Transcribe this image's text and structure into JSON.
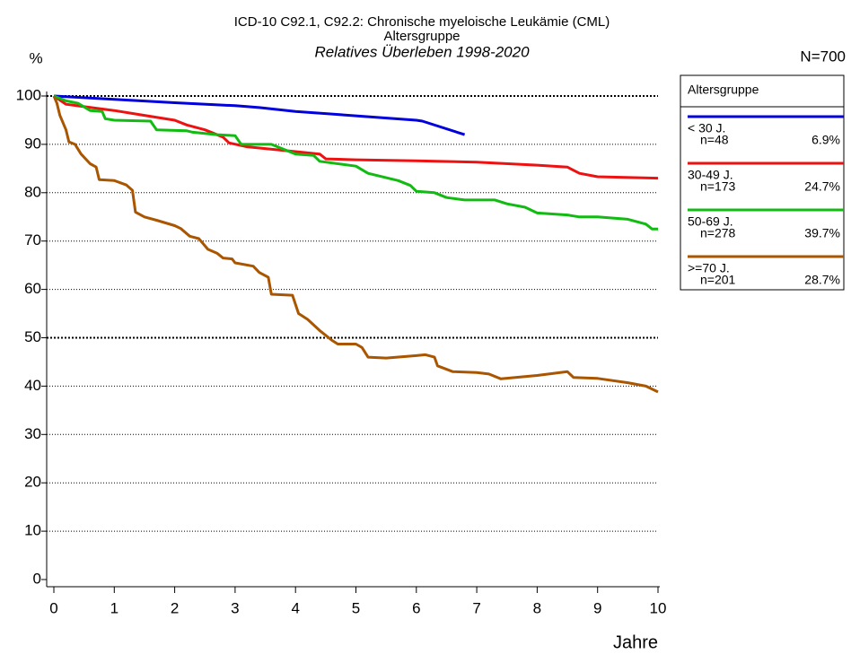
{
  "chart_data": {
    "type": "line",
    "title": "ICD-10 C92.1, C92.2: Chronische myeloische Leukämie (CML)",
    "subtitle": "Altersgruppe",
    "subtitle2": "Relatives Überleben 1998-2020",
    "y_label": "%",
    "x_label": "Jahre",
    "total_label": "N=700",
    "legend_title": "Altersgruppe",
    "xlim": [
      0,
      10
    ],
    "xticks": [
      0,
      1,
      2,
      3,
      4,
      5,
      6,
      7,
      8,
      9,
      10
    ],
    "ylim": [
      0,
      100
    ],
    "yticks": [
      0,
      10,
      20,
      30,
      40,
      50,
      60,
      70,
      80,
      90,
      100
    ],
    "grid": true,
    "bold_gridlines": [
      50,
      100
    ],
    "series": [
      {
        "name": "< 30 J.",
        "n_label": "n=48",
        "share_label": "6.9%",
        "color": "#0000dd",
        "x": [
          0,
          1,
          2,
          3,
          3.4,
          4,
          5,
          6,
          6.1,
          6.8
        ],
        "values": [
          100,
          99.3,
          98.6,
          98,
          97.6,
          96.8,
          95.9,
          95,
          94.8,
          92
        ]
      },
      {
        "name": "30-49 J.",
        "n_label": "n=173",
        "share_label": "24.7%",
        "color": "#ee1111",
        "x": [
          0,
          0.2,
          0.5,
          1,
          1.5,
          2,
          2.2,
          2.5,
          2.8,
          2.9,
          3.2,
          4,
          4.4,
          4.5,
          5,
          6,
          7,
          8,
          8.5,
          8.7,
          9,
          10
        ],
        "values": [
          100,
          98.3,
          97.8,
          97,
          96,
          95,
          94,
          93,
          91.5,
          90.3,
          89.5,
          88.5,
          88,
          87,
          86.8,
          86.6,
          86.3,
          85.7,
          85.3,
          84,
          83.3,
          83
        ]
      },
      {
        "name": "50-69 J.",
        "n_label": "n=278",
        "share_label": "39.7%",
        "color": "#11bb11",
        "x": [
          0,
          0.2,
          0.4,
          0.6,
          0.8,
          0.85,
          1,
          1.6,
          1.7,
          2.2,
          2.3,
          2.7,
          3,
          3.1,
          3.6,
          4,
          4.3,
          4.4,
          5,
          5.2,
          5.7,
          5.9,
          6,
          6.3,
          6.5,
          6.8,
          7.3,
          7.5,
          7.8,
          8,
          8.5,
          8.7,
          9,
          9.5,
          9.8,
          9.9,
          10
        ],
        "values": [
          100,
          99,
          98.5,
          97,
          96.8,
          95.3,
          95,
          94.8,
          93,
          92.8,
          92.5,
          92,
          91.8,
          90,
          90,
          88,
          87.7,
          86.5,
          85.5,
          84,
          82.5,
          81.5,
          80.3,
          80,
          79,
          78.5,
          78.5,
          77.7,
          77,
          75.8,
          75.4,
          75,
          75,
          74.5,
          73.5,
          72.5,
          72.5
        ]
      },
      {
        "name": ">=70 J.",
        "n_label": "n=201",
        "share_label": "28.7%",
        "color": "#aa5500",
        "x": [
          0,
          0.05,
          0.1,
          0.2,
          0.25,
          0.35,
          0.45,
          0.6,
          0.7,
          0.75,
          1,
          1.2,
          1.3,
          1.35,
          1.5,
          1.7,
          2,
          2.1,
          2.25,
          2.4,
          2.55,
          2.7,
          2.8,
          2.95,
          3,
          3.3,
          3.4,
          3.55,
          3.6,
          3.95,
          4.05,
          4.2,
          4.4,
          4.6,
          4.7,
          5,
          5.1,
          5.2,
          5.5,
          6,
          6.15,
          6.3,
          6.35,
          6.6,
          7,
          7.2,
          7.4,
          8,
          8.5,
          8.6,
          9,
          9.5,
          9.8,
          10
        ],
        "values": [
          100,
          98.5,
          96,
          93,
          90.5,
          90,
          88,
          86,
          85.3,
          82.7,
          82.5,
          81.6,
          80.5,
          76,
          75,
          74.3,
          73.2,
          72.6,
          71,
          70.5,
          68.3,
          67.5,
          66.5,
          66.3,
          65.5,
          64.8,
          63.5,
          62.5,
          59,
          58.8,
          55,
          53.8,
          51.5,
          49.5,
          48.7,
          48.7,
          48,
          46,
          45.8,
          46.3,
          46.5,
          46,
          44.2,
          43,
          42.8,
          42.5,
          41.5,
          42.2,
          43,
          41.8,
          41.6,
          40.7,
          40,
          38.8
        ]
      }
    ]
  }
}
